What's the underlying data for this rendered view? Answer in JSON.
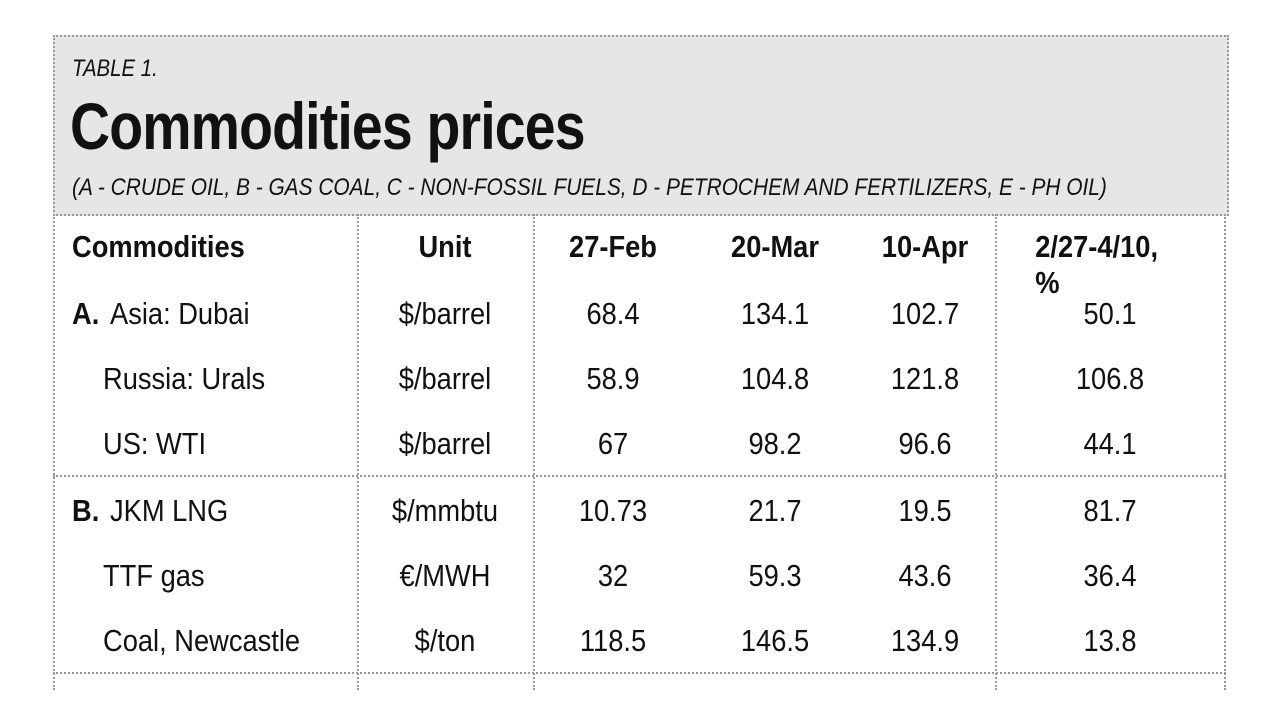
{
  "header": {
    "kicker": "TABLE 1.",
    "title": "Commodities prices",
    "subtitle": "(A - CRUDE OIL, B - GAS COAL, C - NON-FOSSIL FUELS, D - PETROCHEM AND FERTILIZERS, E - PH OIL)"
  },
  "table": {
    "columns": [
      "Commodities",
      "Unit",
      "27-Feb",
      "20-Mar",
      "10-Apr",
      "2/27-4/10, %"
    ],
    "groups": [
      {
        "rows": [
          {
            "prefix": "A.",
            "name": "Asia: Dubai",
            "unit": "$/barrel",
            "values": [
              68.4,
              134.1,
              102.7,
              50.1
            ]
          },
          {
            "name": "Russia: Urals",
            "unit": "$/barrel",
            "values": [
              58.9,
              104.8,
              121.8,
              106.8
            ]
          },
          {
            "name": "US: WTI",
            "unit": "$/barrel",
            "values": [
              67,
              98.2,
              96.6,
              44.1
            ]
          }
        ]
      },
      {
        "rows": [
          {
            "prefix": "B.",
            "name": "JKM LNG",
            "unit": "$/mmbtu",
            "values": [
              10.73,
              21.7,
              19.5,
              81.7
            ]
          },
          {
            "name": "TTF gas",
            "unit": "€/MWH",
            "values": [
              32,
              59.3,
              43.6,
              36.4
            ]
          },
          {
            "name": "Coal, Newcastle",
            "unit": "$/ton",
            "values": [
              118.5,
              146.5,
              134.9,
              13.8
            ]
          }
        ]
      }
    ]
  }
}
